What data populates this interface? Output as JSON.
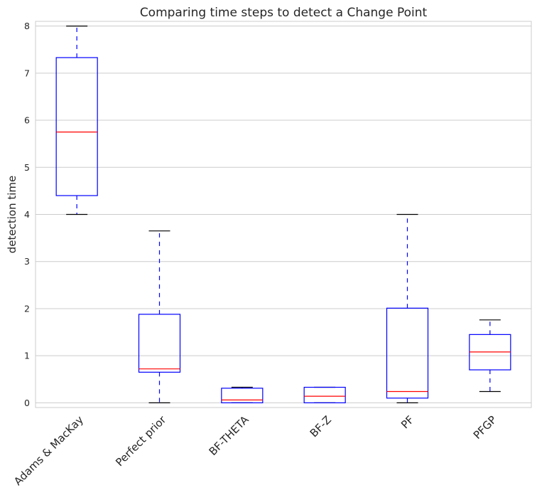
{
  "chart_data": {
    "type": "boxplot",
    "title": "Comparing time steps to detect a Change Point",
    "xlabel": "",
    "ylabel": "detection time",
    "ylim": [
      -0.1,
      8.1
    ],
    "yticks": [
      "0",
      "1",
      "2",
      "3",
      "4",
      "5",
      "6",
      "7",
      "8"
    ],
    "grid": "horizontal",
    "categories": [
      "Adams & MacKay",
      "Perfect prior",
      "BF-THETA",
      "BF-Z",
      "PF",
      "PFGP"
    ],
    "boxes": [
      {
        "label": "Adams & MacKay",
        "whisker_low": 4.0,
        "q1": 4.4,
        "median": 5.75,
        "q3": 7.33,
        "whisker_high": 8.0
      },
      {
        "label": "Perfect prior",
        "whisker_low": 0.0,
        "q1": 0.65,
        "median": 0.72,
        "q3": 1.88,
        "whisker_high": 3.65
      },
      {
        "label": "BF-THETA",
        "whisker_low": 0.0,
        "q1": 0.0,
        "median": 0.06,
        "q3": 0.31,
        "whisker_high": 0.33
      },
      {
        "label": "BF-Z",
        "whisker_low": 0.0,
        "q1": 0.0,
        "median": 0.14,
        "q3": 0.33,
        "whisker_high": 0.33
      },
      {
        "label": "PF",
        "whisker_low": 0.0,
        "q1": 0.1,
        "median": 0.24,
        "q3": 2.01,
        "whisker_high": 4.0
      },
      {
        "label": "PFGP",
        "whisker_low": 0.24,
        "q1": 0.7,
        "median": 1.08,
        "q3": 1.45,
        "whisker_high": 1.76
      }
    ],
    "colors": {
      "box": "#0000ff",
      "median": "#ff0000",
      "whisker": "#0000ff",
      "cap": "#000000",
      "grid": "#cccccc",
      "frame": "#cccccc"
    }
  }
}
